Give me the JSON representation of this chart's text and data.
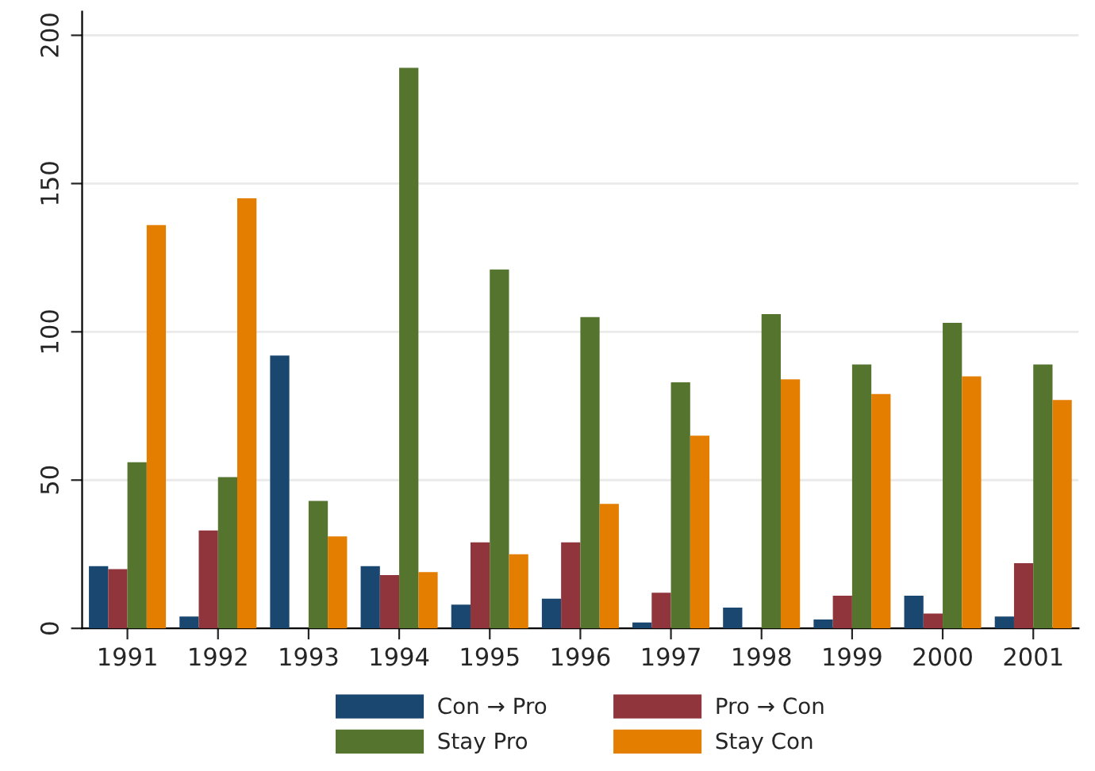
{
  "chart_data": {
    "type": "bar",
    "categories": [
      "1991",
      "1992",
      "1993",
      "1994",
      "1995",
      "1996",
      "1997",
      "1998",
      "1999",
      "2000",
      "2001"
    ],
    "series": [
      {
        "name": "Con → Pro",
        "color": "#1a476f",
        "values": [
          21,
          4,
          92,
          21,
          8,
          10,
          2,
          7,
          3,
          11,
          4
        ]
      },
      {
        "name": "Pro → Con",
        "color": "#90353b",
        "values": [
          20,
          33,
          0,
          18,
          29,
          29,
          12,
          0,
          11,
          5,
          22
        ]
      },
      {
        "name": "Stay Pro",
        "color": "#55752f",
        "values": [
          56,
          51,
          43,
          189,
          121,
          105,
          83,
          106,
          89,
          103,
          89
        ]
      },
      {
        "name": "Stay Con",
        "color": "#e37e00",
        "values": [
          136,
          145,
          31,
          19,
          25,
          42,
          65,
          84,
          79,
          85,
          77
        ]
      }
    ],
    "ylim": [
      0,
      208
    ],
    "yticks": [
      0,
      50,
      100,
      150,
      200
    ],
    "grid": "y",
    "legend": "bottom"
  }
}
